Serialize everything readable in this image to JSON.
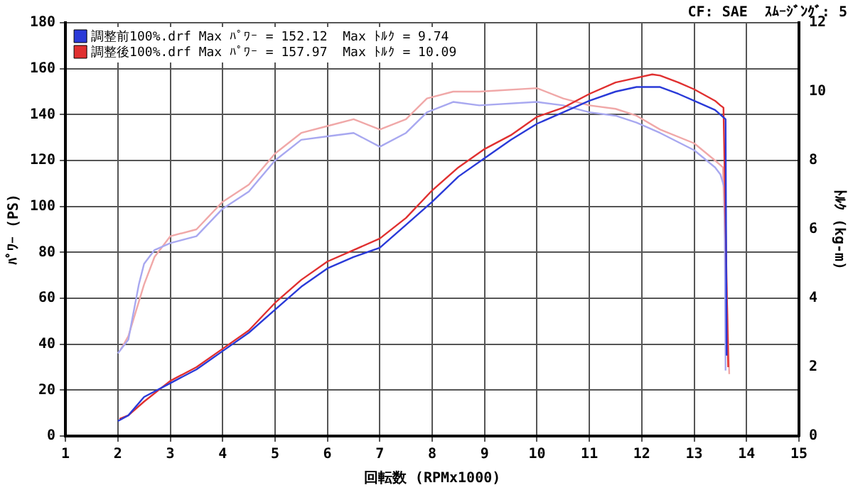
{
  "chart_data": {
    "type": "line",
    "xlabel": "回転数 (RPMx1000)",
    "ylabel": "ﾊﾟﾜｰ (PS)",
    "y2label": "ﾄﾙｸ (kg-m)",
    "annotations": [
      "CF: SAE  ｽﾑｰｼﾞﾝｸﾞ: 5"
    ],
    "xlim": [
      1,
      15
    ],
    "xticks": [
      1,
      2,
      3,
      4,
      5,
      6,
      7,
      8,
      9,
      10,
      11,
      12,
      13,
      14,
      15
    ],
    "ylim": [
      0,
      180
    ],
    "yticks": [
      0,
      20,
      40,
      60,
      80,
      100,
      120,
      140,
      160,
      180
    ],
    "y2lim": [
      0,
      12
    ],
    "y2ticks": [
      0,
      2,
      4,
      6,
      8,
      10,
      12
    ],
    "grid": true,
    "legend": "top left",
    "marker": "none",
    "series": [
      {
        "name": "調整前100%.drf Max ﾊﾟﾜｰ = 152.12  Max ﾄﾙｸ = 9.74",
        "color": "#2a3ad8",
        "x": [
          2,
          2.2,
          2.5,
          3,
          3.5,
          4,
          4.5,
          5,
          5.5,
          6,
          6.5,
          7,
          7.5,
          8,
          8.5,
          9,
          9.5,
          10,
          10.5,
          11,
          11.5,
          11.9,
          12.35,
          12.7,
          13,
          13.4,
          13.5,
          13.6,
          13.62
        ],
        "values": [
          6.5,
          9,
          17,
          23,
          29,
          37,
          45,
          55,
          65,
          73,
          78,
          82,
          92,
          102,
          113,
          121,
          129,
          136,
          141,
          146,
          150,
          152,
          152,
          149,
          146,
          142,
          140,
          138,
          35
        ]
      },
      {
        "name": "調整後100%.drf Max ﾊﾟﾜｰ = 157.97  Max ﾄﾙｸ = 10.09",
        "color": "#e03030",
        "x": [
          2.03,
          2.2,
          2.5,
          3,
          3.5,
          4,
          4.5,
          5,
          5.5,
          6,
          6.5,
          7,
          7.5,
          8,
          8.5,
          9,
          9.5,
          10,
          10.5,
          11,
          11.5,
          11.9,
          12.2,
          12.35,
          12.7,
          13,
          13.4,
          13.5,
          13.56,
          13.65
        ],
        "values": [
          7.5,
          9,
          15,
          24,
          30,
          38,
          46,
          58,
          68,
          76,
          81,
          86,
          95,
          107,
          117,
          125,
          131,
          139,
          143,
          149,
          154,
          156,
          157.5,
          157,
          154,
          151,
          146,
          144,
          143,
          30
        ]
      },
      {
        "color": "#a8a8f0",
        "axis": "y2",
        "x": [
          2,
          2.2,
          2.4,
          2.5,
          2.7,
          3,
          3.5,
          4,
          4.5,
          5,
          5.5,
          6,
          6.5,
          7,
          7.5,
          7.9,
          8.4,
          8.9,
          10,
          10.5,
          11,
          11.5,
          11.9,
          12.35,
          13,
          13.4,
          13.5,
          13.58,
          13.6
        ],
        "values": [
          2.4,
          2.8,
          4.4,
          5,
          5.4,
          5.6,
          5.8,
          6.6,
          7.1,
          8,
          8.6,
          8.7,
          8.8,
          8.4,
          8.8,
          9.4,
          9.7,
          9.6,
          9.7,
          9.6,
          9.4,
          9.3,
          9.1,
          8.8,
          8.3,
          7.8,
          7.6,
          7.2,
          1.9
        ]
      },
      {
        "color": "#f0a8a8",
        "axis": "y2",
        "x": [
          2.05,
          2.2,
          2.4,
          2.5,
          2.7,
          3,
          3.5,
          4,
          4.5,
          5,
          5.5,
          6,
          6.5,
          7,
          7.5,
          7.9,
          8.4,
          8.9,
          10,
          10.5,
          11,
          11.5,
          11.9,
          12.35,
          13,
          13.4,
          13.55,
          13.67
        ],
        "values": [
          2.5,
          2.9,
          3.9,
          4.4,
          5.2,
          5.8,
          6,
          6.8,
          7.3,
          8.2,
          8.8,
          9,
          9.2,
          8.9,
          9.2,
          9.8,
          10,
          10,
          10.1,
          9.8,
          9.6,
          9.5,
          9.3,
          8.9,
          8.5,
          8,
          7.8,
          1.8
        ]
      }
    ]
  }
}
